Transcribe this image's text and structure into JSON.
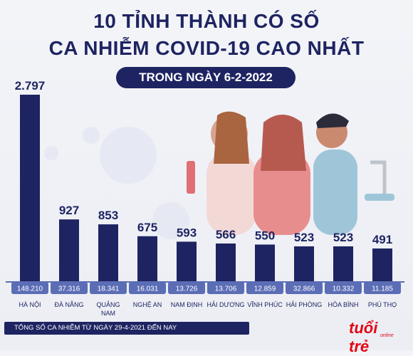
{
  "title_line1": "10 TỈNH THÀNH CÓ SỐ",
  "title_line2": "CA NHIỄM COVID-19 CAO NHẤT",
  "date_label": "TRONG NGÀY 6-2-2022",
  "footnote": "TỔNG SỐ CA NHIỄM TỪ NGÀY 29-4-2021 ĐẾN NAY",
  "logo_text": "tuổi trẻ",
  "logo_sub": "online",
  "colors": {
    "navy": "#1e2461",
    "axis": "#5a6db5",
    "label": "#1e2461",
    "brand_red": "#e30613"
  },
  "chart_data": {
    "type": "bar",
    "categories": [
      "HÀ NỘI",
      "ĐÀ NẴNG",
      "QUẢNG NAM",
      "NGHỆ AN",
      "NAM ĐỊNH",
      "HẢI DƯƠNG",
      "VĨNH PHÚC",
      "HẢI PHÒNG",
      "HÒA BÌNH",
      "PHÚ THỌ"
    ],
    "values": [
      2797,
      927,
      853,
      675,
      593,
      566,
      550,
      523,
      523,
      491
    ],
    "value_labels": [
      "2.797",
      "927",
      "853",
      "675",
      "593",
      "566",
      "550",
      "523",
      "523",
      "491"
    ],
    "totals": [
      "148.210",
      "37.316",
      "18.341",
      "16.031",
      "13.726",
      "13.706",
      "12.859",
      "32.866",
      "10.332",
      "11.185"
    ],
    "ylim": [
      0,
      2797
    ]
  }
}
